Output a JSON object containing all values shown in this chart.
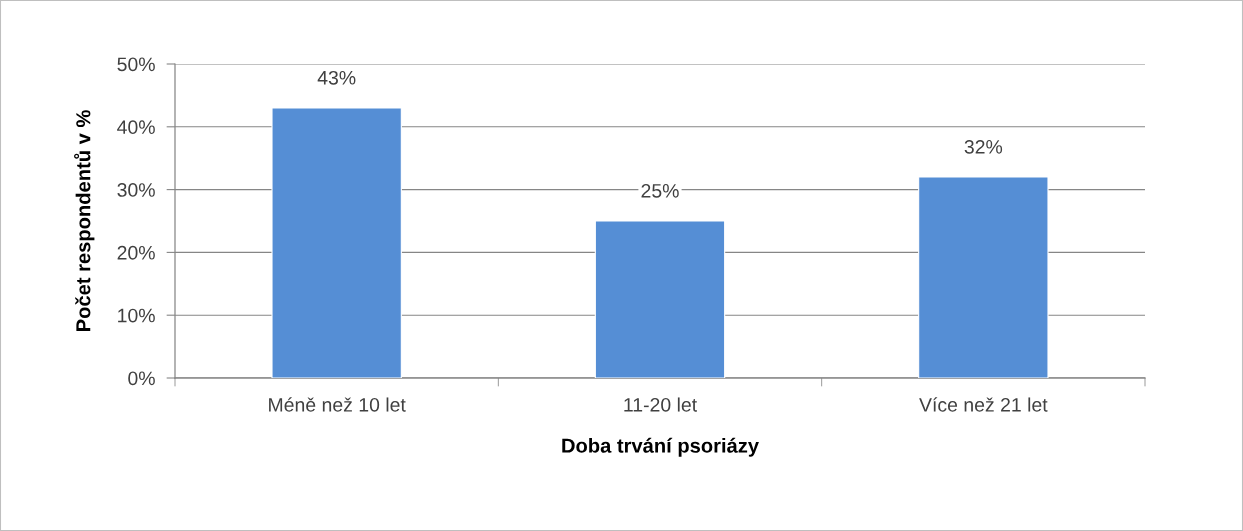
{
  "chart_data": {
    "type": "bar",
    "xlabel": "Doba trvání psoriázy",
    "ylabel": "Počet respondentů v %",
    "categories": [
      "Méně než 10 let",
      "11-20 let",
      "Více než 21 let"
    ],
    "values": [
      43,
      25,
      32
    ],
    "value_labels": [
      "43%",
      "25%",
      "32%"
    ],
    "color": "#558ed5",
    "ylim": [
      0,
      50
    ],
    "yticks": [
      {
        "value": 0,
        "label": "0%"
      },
      {
        "value": 10,
        "label": "10%"
      },
      {
        "value": 20,
        "label": "20%"
      },
      {
        "value": 30,
        "label": "30%"
      },
      {
        "value": 40,
        "label": "40%"
      },
      {
        "value": 50,
        "label": "50%"
      }
    ],
    "grid": "y",
    "legend": false
  }
}
